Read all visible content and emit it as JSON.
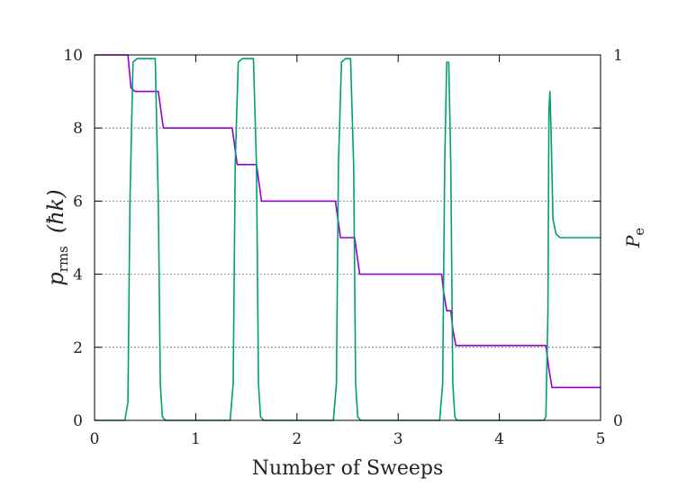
{
  "chart_data": {
    "type": "line",
    "xlabel": "Number of Sweeps",
    "ylabel_main": "p",
    "ylabel_sub": "rms",
    "ylabel_unit": "(ħk)",
    "y2label_main": "P",
    "y2label_sub": "e",
    "xlim": [
      0,
      5
    ],
    "ylim": [
      0,
      10
    ],
    "y2lim": [
      0,
      1
    ],
    "x_ticks": [
      "0",
      "1",
      "2",
      "3",
      "4",
      "5"
    ],
    "y_ticks": [
      "0",
      "2",
      "4",
      "6",
      "8",
      "10"
    ],
    "y2_ticks": [
      "0",
      "1"
    ],
    "grid": "horizontal dotted at y = 2, 4, 6, 8",
    "series": [
      {
        "color": "#9400d3",
        "axis": "left",
        "x": [
          0,
          0.33,
          0.36,
          0.4,
          0.63,
          0.65,
          0.68,
          1.36,
          1.38,
          1.41,
          1.6,
          1.62,
          1.65,
          2.38,
          2.4,
          2.43,
          2.57,
          2.59,
          2.62,
          3.43,
          3.45,
          3.48,
          3.52,
          3.54,
          3.57,
          4.46,
          4.49,
          4.52,
          5.0
        ],
        "y": [
          10,
          10,
          9.1,
          9.0,
          9.0,
          8.6,
          8.0,
          8.0,
          7.6,
          7.0,
          7.0,
          6.6,
          6.0,
          6.0,
          5.6,
          5.0,
          5.0,
          4.6,
          4.0,
          4.0,
          3.5,
          3.0,
          3.0,
          2.5,
          2.05,
          2.05,
          1.4,
          0.9,
          0.9
        ]
      },
      {
        "color": "#009e73",
        "axis": "right",
        "x": [
          0,
          0.3,
          0.33,
          0.35,
          0.38,
          0.42,
          0.6,
          0.63,
          0.65,
          0.67,
          0.7,
          1.34,
          1.37,
          1.39,
          1.42,
          1.46,
          1.57,
          1.6,
          1.62,
          1.64,
          1.67,
          2.36,
          2.39,
          2.41,
          2.44,
          2.48,
          2.53,
          2.56,
          2.58,
          2.6,
          2.63,
          3.41,
          3.44,
          3.46,
          3.48,
          3.5,
          3.52,
          3.54,
          3.56,
          3.58,
          4.44,
          4.46,
          4.48,
          4.49,
          4.5,
          4.51,
          4.53,
          4.56,
          4.6,
          5.0
        ],
        "y": [
          0.0,
          0.0,
          0.05,
          0.6,
          0.98,
          0.99,
          0.99,
          0.6,
          0.1,
          0.01,
          0.0,
          0.0,
          0.1,
          0.7,
          0.98,
          0.99,
          0.99,
          0.7,
          0.1,
          0.01,
          0.0,
          0.0,
          0.1,
          0.7,
          0.98,
          0.99,
          0.99,
          0.7,
          0.1,
          0.01,
          0.0,
          0.0,
          0.1,
          0.7,
          0.98,
          0.98,
          0.7,
          0.1,
          0.01,
          0.0,
          0.0,
          0.01,
          0.3,
          0.85,
          0.9,
          0.8,
          0.55,
          0.51,
          0.5,
          0.5
        ]
      }
    ]
  }
}
